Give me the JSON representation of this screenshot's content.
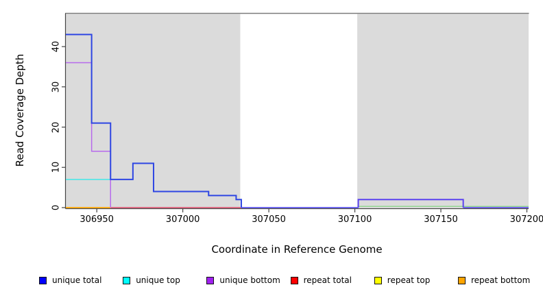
{
  "chart_data": {
    "type": "line",
    "title": "",
    "xlabel": "Coordinate in Reference Genome",
    "ylabel": "Read Coverage Depth",
    "xlim": [
      306932,
      307201
    ],
    "ylim": [
      0,
      48
    ],
    "x_ticks": [
      306950,
      307000,
      307050,
      307100,
      307150,
      307200
    ],
    "y_ticks": [
      0,
      10,
      20,
      30,
      40
    ],
    "grid": false,
    "legend_position": "bottom",
    "shaded_regions": [
      {
        "label": "shaded-left",
        "x0": 306932,
        "x1": 307033.4,
        "color": "#DBDBDB"
      },
      {
        "label": "shaded-right",
        "x0": 307101.4,
        "x1": 307201,
        "color": "#DBDBDB"
      }
    ],
    "series": [
      {
        "name": "unique total",
        "legend_color": "#0000FF",
        "steps": [
          [
            306932,
            43
          ],
          [
            306947,
            21
          ],
          [
            306958,
            7
          ],
          [
            306971,
            11
          ],
          [
            306983,
            4
          ],
          [
            307015,
            3
          ],
          [
            307031,
            2
          ],
          [
            307034,
            0
          ],
          [
            307102,
            2
          ],
          [
            307163,
            0
          ],
          [
            307201,
            0
          ]
        ]
      },
      {
        "name": "unique top",
        "legend_color": "#00FFFF",
        "steps": [
          [
            306932,
            7
          ],
          [
            306971,
            11
          ],
          [
            306983,
            4
          ],
          [
            307015,
            3
          ],
          [
            307031,
            2
          ],
          [
            307034,
            0
          ],
          [
            307201,
            0
          ]
        ]
      },
      {
        "name": "unique bottom",
        "legend_color": "#A020F0",
        "steps": [
          [
            306932,
            36
          ],
          [
            306947,
            14
          ],
          [
            306958,
            0
          ],
          [
            307102,
            2
          ],
          [
            307163,
            0
          ],
          [
            307201,
            0
          ]
        ]
      },
      {
        "name": "repeat total",
        "legend_color": "#FF0000",
        "steps": [
          [
            306932,
            0
          ],
          [
            307201,
            0
          ]
        ]
      },
      {
        "name": "repeat top",
        "legend_color": "#FFFF00",
        "steps": [
          [
            306932,
            0
          ],
          [
            307201,
            0
          ]
        ]
      },
      {
        "name": "repeat bottom",
        "legend_color": "#FFA500",
        "steps": [
          [
            306932,
            0
          ],
          [
            307201,
            0
          ]
        ]
      }
    ]
  },
  "render": {
    "axis_color": "#444444",
    "top_border_color": "#7A7A7A",
    "segments": [
      {
        "name": "repeat-bottom-zero-left",
        "color": "#FFA500",
        "w": 1.8,
        "pts": [
          [
            306932,
            0
          ],
          [
            306958,
            0
          ]
        ]
      },
      {
        "name": "repeat-total-zero-mid",
        "color": "#DD5B78",
        "w": 1.8,
        "pts": [
          [
            306958,
            0
          ],
          [
            307034,
            0
          ]
        ]
      },
      {
        "name": "zero-line-gap",
        "color": "#5B55EE",
        "w": 1.8,
        "pts": [
          [
            307034,
            0
          ],
          [
            307102,
            0
          ]
        ]
      },
      {
        "name": "unique-top-right",
        "color": "#93D793",
        "w": 1.5,
        "pts": [
          [
            307102,
            0.3
          ],
          [
            307201,
            0.3
          ]
        ]
      },
      {
        "name": "zero-line-right",
        "color": "#6452EC",
        "w": 1.8,
        "pts": [
          [
            307163,
            0
          ],
          [
            307201,
            0
          ]
        ]
      },
      {
        "name": "unique-top-left",
        "color": "#40E8E8",
        "w": 1.5,
        "pts": [
          [
            306932,
            7
          ],
          [
            306958,
            7
          ]
        ]
      },
      {
        "name": "unique-bottom-steps",
        "color": "#B76AEC",
        "w": 1.5,
        "pts": [
          [
            306932,
            36
          ],
          [
            306947,
            36
          ],
          [
            306947,
            14
          ],
          [
            306958,
            14
          ],
          [
            306958,
            0
          ]
        ]
      },
      {
        "name": "unique-right-plateau",
        "color": "#5B43EF",
        "w": 2,
        "pts": [
          [
            307102,
            0
          ],
          [
            307102,
            2
          ],
          [
            307163,
            2
          ],
          [
            307163,
            0
          ]
        ]
      },
      {
        "name": "unique-total-steps",
        "color": "#2E46E3",
        "w": 2,
        "pts": [
          [
            306932,
            43
          ],
          [
            306947,
            43
          ],
          [
            306947,
            21
          ],
          [
            306958,
            21
          ],
          [
            306958,
            7
          ],
          [
            306971,
            7
          ],
          [
            306971,
            11
          ],
          [
            306983,
            11
          ],
          [
            306983,
            4
          ],
          [
            307015,
            4
          ],
          [
            307015,
            3
          ],
          [
            307031,
            3
          ],
          [
            307031,
            2
          ],
          [
            307034,
            2
          ],
          [
            307034,
            0
          ]
        ]
      }
    ]
  }
}
